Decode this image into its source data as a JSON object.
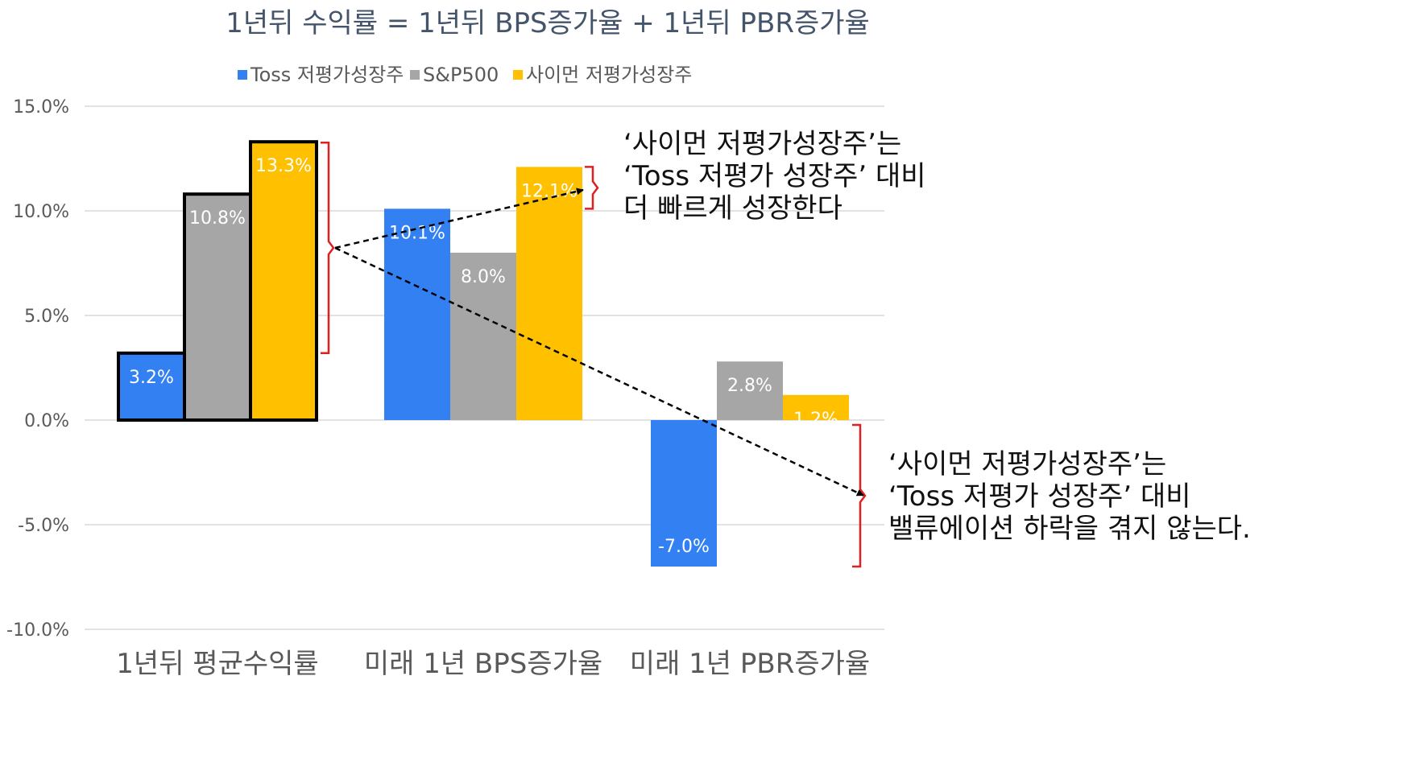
{
  "chart_data": {
    "type": "bar",
    "title": "1년뒤 수익률 = 1년뒤 BPS증가율 + 1년뒤 PBR증가율",
    "xlabel": "",
    "ylabel": "",
    "categories": [
      "1년뒤 평균수익률",
      "미래 1년 BPS증가율",
      "미래 1년 PBR증가율"
    ],
    "series": [
      {
        "name": "Toss 저평가성장주",
        "values": [
          3.2,
          10.1,
          -7.0
        ],
        "labels": [
          "3.2%",
          "10.1%",
          "-7.0%"
        ],
        "color": "#3380f2"
      },
      {
        "name": "S&P500",
        "values": [
          10.8,
          8.0,
          2.8
        ],
        "labels": [
          "10.8%",
          "8.0%",
          "2.8%"
        ],
        "color": "#a6a6a6"
      },
      {
        "name": "사이먼 저평가성장주",
        "values": [
          13.3,
          12.1,
          1.2
        ],
        "labels": [
          "13.3%",
          "12.1%",
          "1.2%"
        ],
        "color": "#ffc000"
      }
    ],
    "ylim": [
      -10,
      15
    ],
    "yticks": [
      15,
      10,
      5,
      0,
      -5,
      -10
    ],
    "ytick_labels": [
      "15.0%",
      "10.0%",
      "5.0%",
      "0.0%",
      "-5.0%",
      "-10.0%"
    ],
    "grid": true,
    "legend_position": "top-center",
    "highlighted_category": "1년뒤 평균수익률",
    "annotations": [
      {
        "lines": [
          "‘사이먼 저평가성장주’는",
          "‘Toss 저평가 성장주’ 대비",
          "더 빠르게 성장한다"
        ],
        "points_to": "미래 1년 BPS증가율"
      },
      {
        "lines": [
          "‘사이먼 저평가성장주’는",
          "‘Toss 저평가 성장주’ 대비",
          "밸류에이션 하락을 겪지 않는다."
        ],
        "points_to": "미래 1년 PBR증가율"
      }
    ]
  },
  "colors": {
    "bracket": "#e02020",
    "grid": "#d9d9d9",
    "outline": "#000000"
  }
}
